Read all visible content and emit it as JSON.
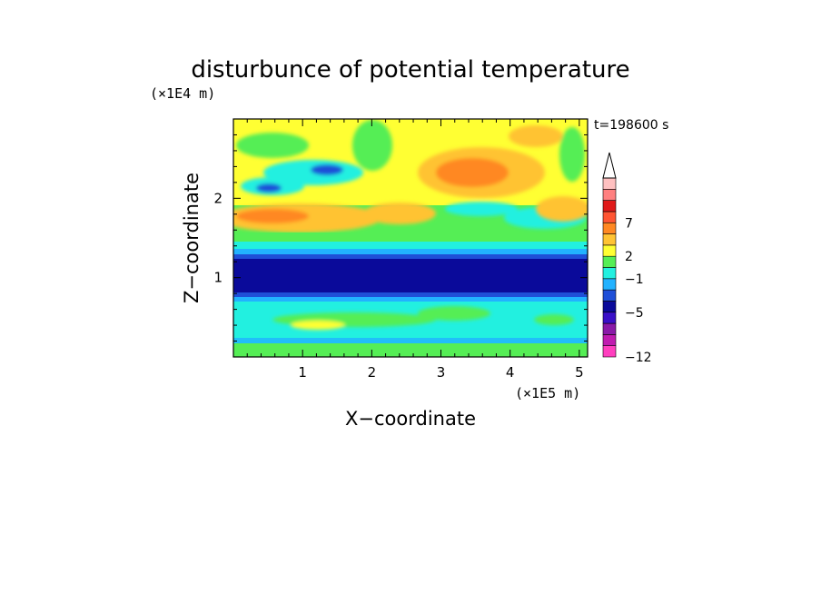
{
  "chart_data": {
    "type": "heatmap",
    "title": "disturbunce of potential temperature",
    "xlabel": "X−coordinate",
    "ylabel": "Z−coordinate",
    "x_unit": "(×1E5 m)",
    "y_unit": "(×1E4 m)",
    "time_label": "t=198600 s",
    "xlim": [
      0,
      5.12
    ],
    "ylim": [
      0,
      3.0
    ],
    "x_ticks": [
      1,
      2,
      3,
      4,
      5
    ],
    "y_ticks": [
      1,
      2
    ],
    "x_tick_labels": [
      "1",
      "2",
      "3",
      "4",
      "5"
    ],
    "y_tick_labels": [
      "1",
      "2"
    ],
    "colorbar": {
      "levels": [
        -12,
        -9,
        -7,
        -5,
        -3,
        -1,
        0,
        1,
        2,
        3,
        5,
        7,
        9
      ],
      "labeled_levels": [
        "7",
        "2",
        "−1",
        "−5",
        "−12"
      ],
      "colors": [
        "#ff3fbf",
        "#c01cb0",
        "#8a1aa8",
        "#3a10c8",
        "#0a0a9a",
        "#1f4fd8",
        "#22b2ff",
        "#22f0e0",
        "#55ee55",
        "#ffff33",
        "#ffc333",
        "#ff8822",
        "#ff5533",
        "#e01a1a",
        "#ff8080",
        "#ffc0c0"
      ],
      "extend": "max"
    },
    "bands_description_values": {
      "z_0_to_0.1": -1,
      "z_0.1_to_0.7": 0,
      "z_0.8_to_1.3": -6,
      "z_1.3_to_1.45": -2,
      "z_1.5_to_2.0": 2.5,
      "z_2.0_to_3.0": 1
    }
  }
}
